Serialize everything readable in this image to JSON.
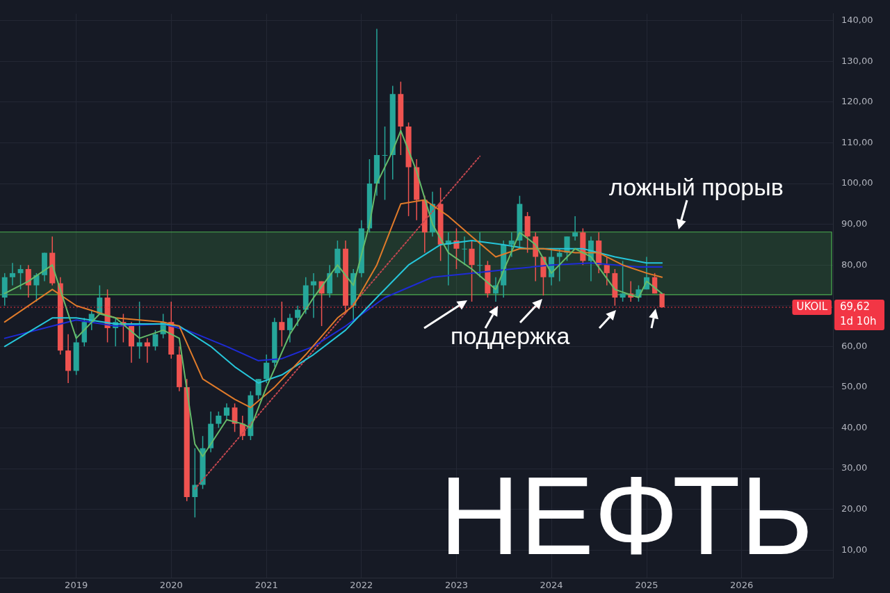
{
  "chart_data": {
    "type": "candlestick",
    "title": "НЕФТЬ",
    "annotations": [
      "ложный прорыв",
      "поддержка",
      "69,62",
      "1d 10h"
    ],
    "x": [
      "2018-04",
      "2018-05",
      "2018-06",
      "2018-07",
      "2018-08",
      "2018-09",
      "2018-10",
      "2018-11",
      "2018-12",
      "2019-01",
      "2019-02",
      "2019-03",
      "2019-04",
      "2019-05",
      "2019-06",
      "2019-07",
      "2019-08",
      "2019-09",
      "2019-10",
      "2019-11",
      "2019-12",
      "2020-01",
      "2020-02",
      "2020-03",
      "2020-04",
      "2020-05",
      "2020-06",
      "2020-07",
      "2020-08",
      "2020-09",
      "2020-10",
      "2020-11",
      "2020-12",
      "2021-01",
      "2021-02",
      "2021-03",
      "2021-04",
      "2021-05",
      "2021-06",
      "2021-07",
      "2021-08",
      "2021-09",
      "2021-10",
      "2021-11",
      "2021-12",
      "2022-01",
      "2022-02",
      "2022-03",
      "2022-04",
      "2022-05",
      "2022-06",
      "2022-07",
      "2022-08",
      "2022-09",
      "2022-10",
      "2022-11",
      "2022-12",
      "2023-01",
      "2023-02",
      "2023-03",
      "2023-04",
      "2023-05",
      "2023-06",
      "2023-07",
      "2023-08",
      "2023-09",
      "2023-10",
      "2023-11",
      "2023-12",
      "2024-01",
      "2024-02",
      "2024-03",
      "2024-04",
      "2024-05",
      "2024-06",
      "2024-07",
      "2024-08",
      "2024-09",
      "2024-10",
      "2024-11",
      "2024-12",
      "2025-01",
      "2025-02",
      "2025-03"
    ],
    "ohlc": [
      [
        72,
        78,
        70,
        77
      ],
      [
        77,
        80.5,
        75,
        78
      ],
      [
        78,
        80,
        74,
        79
      ],
      [
        79,
        80,
        72,
        75
      ],
      [
        75,
        78,
        71,
        77.5
      ],
      [
        77.5,
        83,
        76,
        83
      ],
      [
        83,
        87,
        75,
        75.5
      ],
      [
        75.5,
        77,
        58,
        59
      ],
      [
        59,
        63,
        51,
        54
      ],
      [
        54,
        63,
        53,
        61
      ],
      [
        61,
        67,
        60,
        66
      ],
      [
        66,
        69,
        64,
        68
      ],
      [
        68,
        75,
        68,
        72
      ],
      [
        72,
        74,
        61,
        64.5
      ],
      [
        64.5,
        67,
        60,
        66
      ],
      [
        66,
        68,
        61,
        65
      ],
      [
        65,
        66,
        56,
        60
      ],
      [
        60,
        71,
        57,
        61
      ],
      [
        61,
        62,
        56,
        60
      ],
      [
        60,
        64,
        59,
        63
      ],
      [
        63,
        68,
        62,
        66
      ],
      [
        66,
        71,
        57,
        58
      ],
      [
        58,
        60,
        49,
        50
      ],
      [
        50,
        52,
        22,
        23
      ],
      [
        23,
        35,
        18,
        26
      ],
      [
        26,
        38,
        25,
        35
      ],
      [
        35,
        44,
        34,
        41
      ],
      [
        41,
        44,
        40,
        43
      ],
      [
        43,
        46,
        42,
        45
      ],
      [
        45,
        46,
        39,
        41
      ],
      [
        41,
        43,
        37,
        38
      ],
      [
        38,
        49,
        37,
        48
      ],
      [
        48,
        52,
        47,
        52
      ],
      [
        52,
        58,
        51,
        56
      ],
      [
        56,
        67,
        55,
        66
      ],
      [
        66,
        71,
        60,
        64
      ],
      [
        64,
        68,
        61,
        67
      ],
      [
        67,
        70,
        65,
        69
      ],
      [
        69,
        77,
        68,
        75
      ],
      [
        75,
        78,
        67,
        76
      ],
      [
        76,
        76,
        65,
        73
      ],
      [
        73,
        80,
        72,
        78
      ],
      [
        78,
        86,
        77,
        84
      ],
      [
        84,
        86,
        68,
        70
      ],
      [
        70,
        79,
        66,
        78
      ],
      [
        78,
        91,
        77,
        89
      ],
      [
        89,
        106,
        88,
        100
      ],
      [
        100,
        138,
        97,
        107
      ],
      [
        107,
        114,
        96,
        107
      ],
      [
        107,
        124,
        101,
        122
      ],
      [
        122,
        125,
        107,
        114
      ],
      [
        114,
        115,
        92,
        104
      ],
      [
        104,
        106,
        91,
        96
      ],
      [
        96,
        97,
        83,
        88
      ],
      [
        88,
        98,
        87,
        95
      ],
      [
        95,
        99,
        81,
        85
      ],
      [
        85,
        88,
        75,
        86
      ],
      [
        86,
        89,
        79,
        84
      ],
      [
        84,
        87,
        80,
        84
      ],
      [
        84,
        86,
        71,
        80
      ],
      [
        80,
        88,
        77,
        80
      ],
      [
        80,
        81,
        72,
        73
      ],
      [
        73,
        77,
        71,
        75
      ],
      [
        75,
        86,
        72,
        85
      ],
      [
        85,
        88,
        82,
        86
      ],
      [
        86,
        97,
        84,
        95
      ],
      [
        92,
        93,
        83,
        87
      ],
      [
        87,
        88,
        76,
        82
      ],
      [
        82,
        82,
        72.5,
        77
      ],
      [
        77,
        84,
        75,
        82
      ],
      [
        82,
        84,
        76,
        83
      ],
      [
        83,
        87,
        81,
        87
      ],
      [
        87,
        92,
        86,
        88
      ],
      [
        88,
        89,
        80,
        81
      ],
      [
        81,
        87,
        76,
        86
      ],
      [
        86,
        88,
        78,
        80
      ],
      [
        80,
        82,
        75,
        78
      ],
      [
        78,
        79,
        70,
        72
      ],
      [
        72,
        81,
        71,
        73
      ],
      [
        73,
        76,
        71,
        72
      ],
      [
        72,
        75,
        71,
        74
      ],
      [
        74,
        82,
        74,
        77
      ],
      [
        77,
        78,
        73,
        73
      ],
      [
        73,
        73,
        69.5,
        69.62
      ]
    ],
    "series": [
      {
        "type": "line",
        "color": "#66bb6a",
        "x": [
          "2018-04",
          "2018-07",
          "2018-10",
          "2018-12",
          "2019-01",
          "2019-04",
          "2019-06",
          "2019-09",
          "2019-12",
          "2020-02",
          "2020-04",
          "2020-05",
          "2020-08",
          "2020-10",
          "2020-11",
          "2021-01",
          "2021-04",
          "2021-07",
          "2021-10",
          "2021-12",
          "2022-02",
          "2022-03",
          "2022-05",
          "2022-06",
          "2022-08",
          "2022-10",
          "2022-12",
          "2023-03",
          "2023-06",
          "2023-09",
          "2023-11",
          "2024-01",
          "2024-04",
          "2024-06",
          "2024-09",
          "2024-12",
          "2025-01",
          "2025-03"
        ],
        "values": [
          73,
          76,
          80,
          68,
          62,
          68,
          67,
          62,
          64,
          62,
          36,
          33,
          42,
          41,
          40,
          50,
          63,
          72,
          80,
          75,
          90,
          100,
          108,
          113,
          103,
          90,
          83,
          79,
          74,
          88,
          85,
          78,
          84,
          82,
          74,
          72,
          76,
          73
        ]
      },
      {
        "type": "line",
        "color": "#e07b2a",
        "x": [
          "2018-04",
          "2018-10",
          "2019-01",
          "2019-06",
          "2019-12",
          "2020-02",
          "2020-05",
          "2020-09",
          "2020-11",
          "2021-02",
          "2021-06",
          "2021-10",
          "2021-12",
          "2022-03",
          "2022-06",
          "2022-09",
          "2022-12",
          "2023-03",
          "2023-06",
          "2023-09",
          "2023-12",
          "2024-04",
          "2024-07",
          "2024-10",
          "2025-01",
          "2025-03"
        ],
        "values": [
          66,
          74,
          70,
          67,
          66,
          65,
          52,
          47,
          45,
          50,
          58,
          67,
          70,
          80,
          95,
          96,
          92,
          87,
          82,
          84,
          84,
          83,
          83,
          80,
          78,
          77
        ]
      },
      {
        "type": "line",
        "color": "#26c6da",
        "x": [
          "2018-04",
          "2018-10",
          "2019-01",
          "2019-06",
          "2019-12",
          "2020-02",
          "2020-06",
          "2020-09",
          "2020-12",
          "2021-03",
          "2021-07",
          "2021-11",
          "2022-03",
          "2022-07",
          "2022-11",
          "2023-03",
          "2023-07",
          "2023-10",
          "2024-01",
          "2024-05",
          "2024-09",
          "2025-01",
          "2025-03"
        ],
        "values": [
          60,
          67,
          67,
          65.5,
          65.5,
          65,
          60,
          55,
          51,
          53,
          58,
          64,
          72,
          80,
          85,
          86,
          85,
          84,
          84,
          84,
          82,
          80.5,
          80.5
        ]
      },
      {
        "type": "line",
        "color": "#1e2bd6",
        "x": [
          "2018-04",
          "2018-10",
          "2019-01",
          "2019-06",
          "2019-12",
          "2020-03",
          "2020-08",
          "2020-12",
          "2021-03",
          "2021-07",
          "2021-11",
          "2022-04",
          "2022-10",
          "2023-03",
          "2023-08",
          "2024-01",
          "2024-06",
          "2024-12",
          "2025-03"
        ],
        "values": [
          62,
          65,
          66.5,
          65,
          65.5,
          64,
          60,
          56.5,
          57,
          60,
          65,
          72,
          77,
          78,
          79,
          80,
          80.5,
          79.5,
          79.5
        ]
      },
      {
        "type": "line",
        "color": "#c2474f",
        "line_style": "dotted",
        "x": [
          "2020-04",
          "2023-04"
        ],
        "values": [
          25,
          106.7
        ]
      }
    ],
    "marker": "none",
    "bands": [
      {
        "axis": "y",
        "from": 72.7,
        "to": 88.1,
        "color": "#4caf50"
      }
    ],
    "ref_lines": [
      {
        "axis": "y",
        "value": 69.62,
        "label": "UKOIL",
        "color": "#f23645",
        "line_style": "dotted"
      }
    ],
    "xlim": [
      "2018-03-14",
      "2026-12-18"
    ],
    "xticks": [
      "2019",
      "2020",
      "2021",
      "2022",
      "2023",
      "2024",
      "2025",
      "2026"
    ],
    "ylim": [
      3.2,
      141.7
    ],
    "yticks": [
      {
        "value": 10,
        "label": "10,00"
      },
      {
        "value": 20,
        "label": "20,00"
      },
      {
        "value": 30,
        "label": "30,00"
      },
      {
        "value": 40,
        "label": "40,00"
      },
      {
        "value": 50,
        "label": "50,00"
      },
      {
        "value": 60,
        "label": "60,00"
      },
      {
        "value": 70,
        "label": null
      },
      {
        "value": 80,
        "label": "80,00"
      },
      {
        "value": 90,
        "label": "90,00"
      },
      {
        "value": 100,
        "label": "100,00"
      },
      {
        "value": 110,
        "label": "110,00"
      },
      {
        "value": 120,
        "label": "120,00"
      },
      {
        "value": 130,
        "label": "130,00"
      },
      {
        "value": 140,
        "label": "140,00"
      }
    ],
    "grid": true
  }
}
